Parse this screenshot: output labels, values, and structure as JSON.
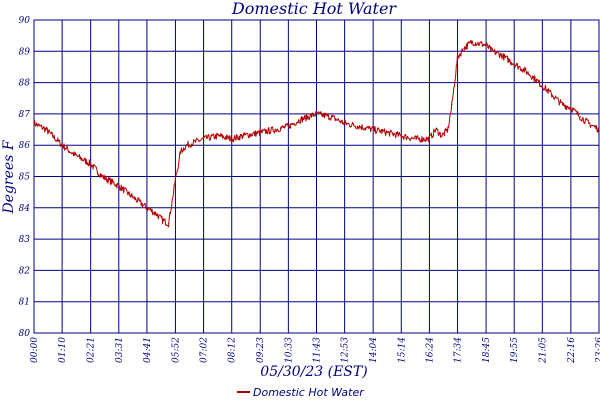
{
  "chart_data": {
    "type": "line",
    "title": "Domestic Hot Water",
    "xlabel": "05/30/23 (EST)",
    "ylabel": "Degrees F",
    "x_tick_labels": [
      "00:00",
      "01:10",
      "02:21",
      "03:31",
      "04:41",
      "05:52",
      "07:02",
      "08:12",
      "09:23",
      "10:33",
      "11:43",
      "12:53",
      "14:04",
      "15:14",
      "16:24",
      "17:34",
      "18:45",
      "19:55",
      "21:05",
      "22:16",
      "23:26"
    ],
    "y_tick_labels": [
      "80",
      "81",
      "82",
      "83",
      "84",
      "85",
      "86",
      "87",
      "88",
      "89",
      "90"
    ],
    "ylim": [
      80,
      90
    ],
    "x_range_minutes": [
      0,
      1406
    ],
    "grid": true,
    "legend_position": "bottom-center",
    "colors": {
      "series": "#b00000",
      "grid": "#000080",
      "text": "#000080"
    },
    "series": [
      {
        "name": "Domestic Hot Water",
        "x": [
          "00:00",
          "00:30",
          "01:10",
          "01:40",
          "02:21",
          "02:50",
          "03:31",
          "04:00",
          "04:41",
          "05:05",
          "05:20",
          "05:35",
          "05:52",
          "06:05",
          "06:20",
          "07:02",
          "07:40",
          "08:12",
          "08:40",
          "09:23",
          "10:00",
          "10:33",
          "11:00",
          "11:43",
          "12:20",
          "12:53",
          "13:30",
          "14:04",
          "14:40",
          "15:14",
          "15:50",
          "16:24",
          "16:40",
          "16:55",
          "17:10",
          "17:20",
          "17:34",
          "17:50",
          "18:10",
          "18:45",
          "19:00",
          "19:20",
          "19:55",
          "20:20",
          "20:40",
          "21:05",
          "21:30",
          "21:55",
          "22:16",
          "22:40",
          "23:00",
          "23:26"
        ],
        "y": [
          86.7,
          86.5,
          86.0,
          85.7,
          85.4,
          85.0,
          84.7,
          84.4,
          84.0,
          83.8,
          83.6,
          83.5,
          84.9,
          85.8,
          86.0,
          86.2,
          86.3,
          86.2,
          86.3,
          86.4,
          86.5,
          86.6,
          86.8,
          87.0,
          86.9,
          86.7,
          86.6,
          86.5,
          86.4,
          86.3,
          86.2,
          86.2,
          86.5,
          86.3,
          86.5,
          87.3,
          88.8,
          89.1,
          89.3,
          89.2,
          89.0,
          88.9,
          88.6,
          88.4,
          88.2,
          87.9,
          87.6,
          87.3,
          87.2,
          86.9,
          86.7,
          86.5
        ]
      }
    ]
  }
}
